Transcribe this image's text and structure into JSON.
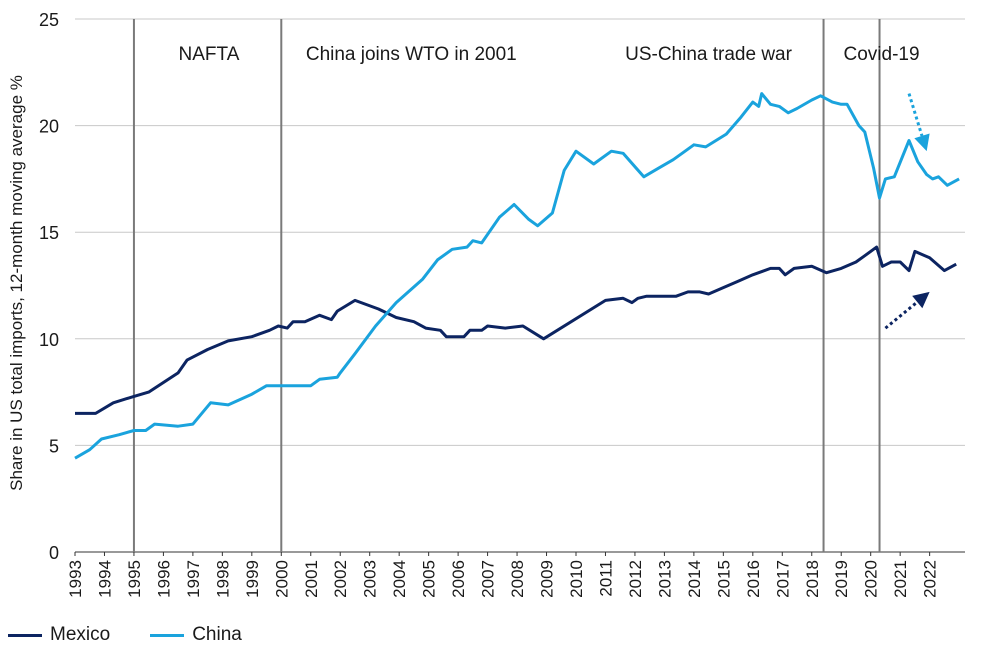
{
  "chart_data": {
    "type": "line",
    "ylabel": "Share in US total imports, 12-month moving average %",
    "xlabel": "",
    "ylim": [
      0,
      25
    ],
    "xlim": [
      1993,
      2023.2
    ],
    "y_ticks": [
      0,
      5,
      10,
      15,
      20,
      25
    ],
    "x_ticks": [
      "1993",
      "1994",
      "1995",
      "1996",
      "1997",
      "1998",
      "1999",
      "2000",
      "2001",
      "2002",
      "2003",
      "2004",
      "2005",
      "2006",
      "2007",
      "2008",
      "2009",
      "2010",
      "2011",
      "2012",
      "2013",
      "2014",
      "2015",
      "2016",
      "2017",
      "2018",
      "2019",
      "2020",
      "2021",
      "2022"
    ],
    "grid": "horizontal",
    "legend_position": "bottom-left",
    "series": [
      {
        "name": "Mexico",
        "color": "#0c2461",
        "points": [
          [
            1993.0,
            6.5
          ],
          [
            1993.7,
            6.5
          ],
          [
            1994.3,
            7.0
          ],
          [
            1995.0,
            7.3
          ],
          [
            1995.5,
            7.5
          ],
          [
            1996.5,
            8.4
          ],
          [
            1996.8,
            9.0
          ],
          [
            1997.5,
            9.5
          ],
          [
            1998.2,
            9.9
          ],
          [
            1999.0,
            10.1
          ],
          [
            1999.6,
            10.4
          ],
          [
            1999.9,
            10.6
          ],
          [
            2000.2,
            10.5
          ],
          [
            2000.4,
            10.8
          ],
          [
            2000.8,
            10.8
          ],
          [
            2001.3,
            11.1
          ],
          [
            2001.7,
            10.9
          ],
          [
            2001.9,
            11.3
          ],
          [
            2002.5,
            11.8
          ],
          [
            2003.3,
            11.4
          ],
          [
            2003.9,
            11.0
          ],
          [
            2004.5,
            10.8
          ],
          [
            2004.9,
            10.5
          ],
          [
            2005.4,
            10.4
          ],
          [
            2005.6,
            10.1
          ],
          [
            2006.2,
            10.1
          ],
          [
            2006.4,
            10.4
          ],
          [
            2006.8,
            10.4
          ],
          [
            2007.0,
            10.6
          ],
          [
            2007.6,
            10.5
          ],
          [
            2008.2,
            10.6
          ],
          [
            2008.9,
            10.0
          ],
          [
            2011.0,
            11.8
          ],
          [
            2011.6,
            11.9
          ],
          [
            2011.9,
            11.7
          ],
          [
            2012.1,
            11.9
          ],
          [
            2012.4,
            12.0
          ],
          [
            2012.8,
            12.0
          ],
          [
            2013.4,
            12.0
          ],
          [
            2013.8,
            12.2
          ],
          [
            2014.2,
            12.2
          ],
          [
            2014.5,
            12.1
          ],
          [
            2015.0,
            12.4
          ],
          [
            2015.5,
            12.7
          ],
          [
            2016.0,
            13.0
          ],
          [
            2016.6,
            13.3
          ],
          [
            2016.9,
            13.3
          ],
          [
            2017.1,
            13.0
          ],
          [
            2017.4,
            13.3
          ],
          [
            2018.0,
            13.4
          ],
          [
            2018.5,
            13.1
          ],
          [
            2019.0,
            13.3
          ],
          [
            2019.5,
            13.6
          ],
          [
            2019.8,
            13.9
          ],
          [
            2020.2,
            14.3
          ],
          [
            2020.4,
            13.4
          ],
          [
            2020.7,
            13.6
          ],
          [
            2021.0,
            13.6
          ],
          [
            2021.3,
            13.2
          ],
          [
            2021.5,
            14.1
          ],
          [
            2022.0,
            13.8
          ],
          [
            2022.5,
            13.2
          ],
          [
            2022.9,
            13.5
          ]
        ]
      },
      {
        "name": "China",
        "color": "#1aa3dd",
        "points": [
          [
            1993.0,
            4.4
          ],
          [
            1993.5,
            4.8
          ],
          [
            1993.9,
            5.3
          ],
          [
            1994.5,
            5.5
          ],
          [
            1995.0,
            5.7
          ],
          [
            1995.4,
            5.7
          ],
          [
            1995.7,
            6.0
          ],
          [
            1996.5,
            5.9
          ],
          [
            1997.0,
            6.0
          ],
          [
            1997.6,
            7.0
          ],
          [
            1998.2,
            6.9
          ],
          [
            1999.0,
            7.4
          ],
          [
            1999.5,
            7.8
          ],
          [
            2001.0,
            7.8
          ],
          [
            2001.3,
            8.1
          ],
          [
            2001.9,
            8.2
          ],
          [
            2002.0,
            8.4
          ],
          [
            2002.5,
            9.3
          ],
          [
            2003.2,
            10.6
          ],
          [
            2003.9,
            11.7
          ],
          [
            2004.8,
            12.8
          ],
          [
            2005.3,
            13.7
          ],
          [
            2005.8,
            14.2
          ],
          [
            2006.3,
            14.3
          ],
          [
            2006.5,
            14.6
          ],
          [
            2006.8,
            14.5
          ],
          [
            2007.4,
            15.7
          ],
          [
            2007.9,
            16.3
          ],
          [
            2008.4,
            15.6
          ],
          [
            2008.7,
            15.3
          ],
          [
            2009.2,
            15.9
          ],
          [
            2009.6,
            17.9
          ],
          [
            2010.0,
            18.8
          ],
          [
            2010.6,
            18.2
          ],
          [
            2011.2,
            18.8
          ],
          [
            2011.6,
            18.7
          ],
          [
            2012.3,
            17.6
          ],
          [
            2012.8,
            18.0
          ],
          [
            2013.3,
            18.4
          ],
          [
            2013.6,
            18.7
          ],
          [
            2014.0,
            19.1
          ],
          [
            2014.4,
            19.0
          ],
          [
            2015.1,
            19.6
          ],
          [
            2015.6,
            20.4
          ],
          [
            2016.0,
            21.1
          ],
          [
            2016.2,
            20.9
          ],
          [
            2016.3,
            21.5
          ],
          [
            2016.6,
            21.0
          ],
          [
            2016.9,
            20.9
          ],
          [
            2017.2,
            20.6
          ],
          [
            2017.5,
            20.8
          ],
          [
            2018.0,
            21.2
          ],
          [
            2018.3,
            21.4
          ],
          [
            2018.7,
            21.1
          ],
          [
            2019.0,
            21.0
          ],
          [
            2019.2,
            21.0
          ],
          [
            2019.6,
            20.0
          ],
          [
            2019.8,
            19.7
          ],
          [
            2020.1,
            18.0
          ],
          [
            2020.3,
            16.6
          ],
          [
            2020.5,
            17.5
          ],
          [
            2020.8,
            17.6
          ],
          [
            2021.3,
            19.3
          ],
          [
            2021.6,
            18.3
          ],
          [
            2021.9,
            17.7
          ],
          [
            2022.1,
            17.5
          ],
          [
            2022.3,
            17.6
          ],
          [
            2022.6,
            17.2
          ],
          [
            2023.0,
            17.5
          ]
        ]
      }
    ],
    "events": [
      {
        "label": "NAFTA",
        "x": 1995.0
      },
      {
        "label": "China joins WTO in 2001",
        "x": 2000.0
      },
      {
        "label": "US-China trade war",
        "x": 2018.4
      },
      {
        "label": "Covid-19",
        "x": 2020.3
      }
    ],
    "arrows": [
      {
        "series": "China",
        "direction": "down",
        "from": [
          2021.3,
          21.5
        ],
        "to": [
          2021.9,
          18.8
        ]
      },
      {
        "series": "Mexico",
        "direction": "up",
        "from": [
          2020.5,
          10.5
        ],
        "to": [
          2022.0,
          12.2
        ]
      }
    ]
  }
}
